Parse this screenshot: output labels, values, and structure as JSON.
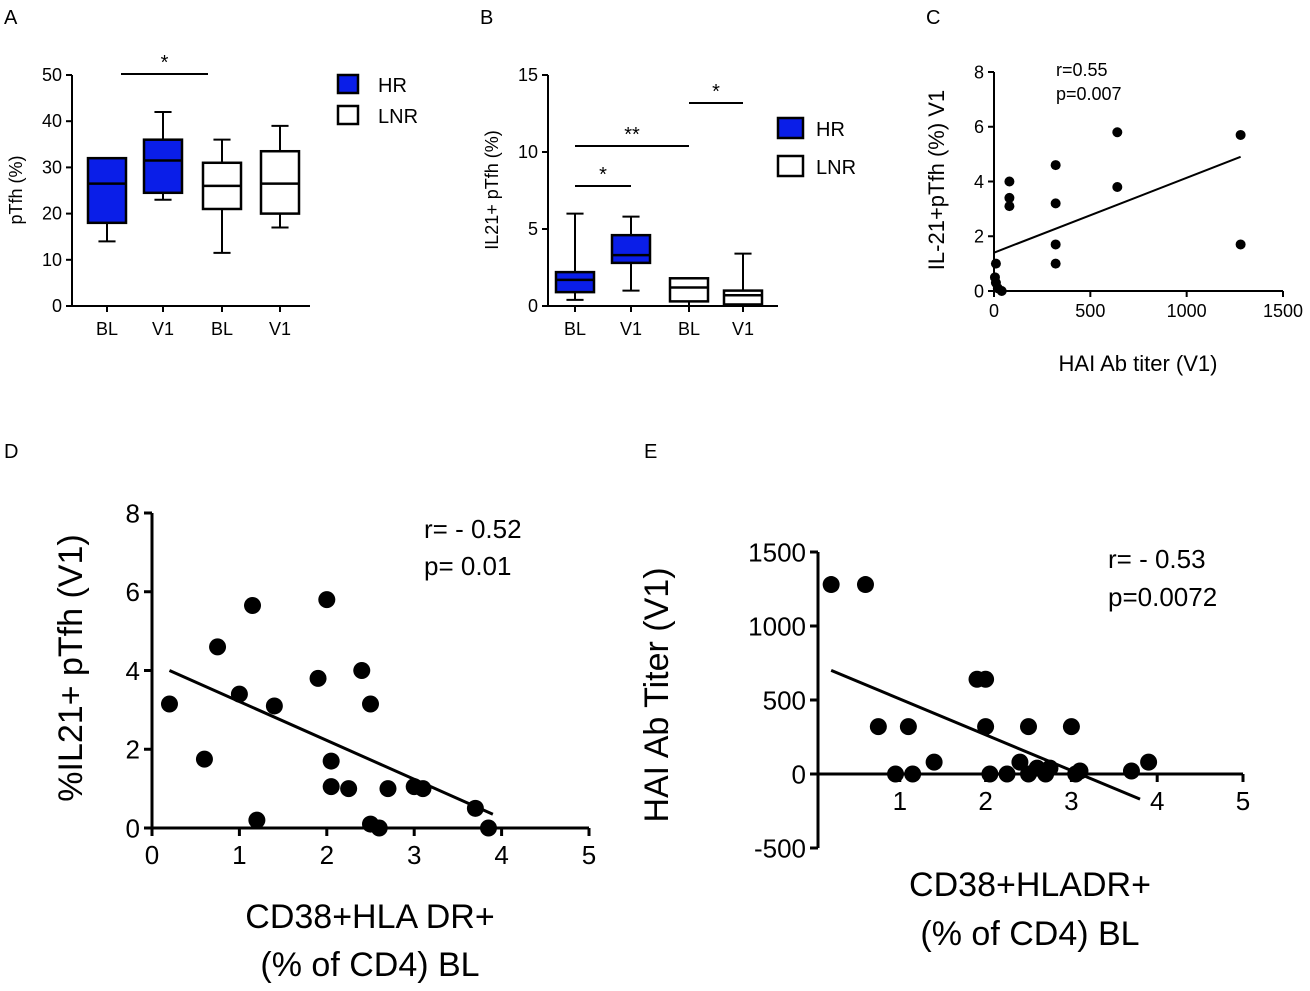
{
  "colors": {
    "hr_fill": "#0a1ee8",
    "lnr_fill": "#ffffff",
    "ink": "#000000"
  },
  "panel_letters": {
    "A": "A",
    "B": "B",
    "C": "C",
    "D": "D",
    "E": "E"
  },
  "chart_data": [
    {
      "id": "A",
      "type": "box",
      "title": "",
      "xlabel": "",
      "ylabel": "pTfh (%)",
      "ylim": [
        0,
        50
      ],
      "yticks": [
        0,
        10,
        20,
        30,
        40,
        50
      ],
      "categories": [
        "BL",
        "V1",
        "BL",
        "V1"
      ],
      "boxes": [
        {
          "group": "HR",
          "min": 14,
          "q1": 18,
          "median": 26.5,
          "q3": 32,
          "max": 32
        },
        {
          "group": "HR",
          "min": 23,
          "q1": 24.5,
          "median": 31.5,
          "q3": 36,
          "max": 42
        },
        {
          "group": "LNR",
          "min": 11.5,
          "q1": 21,
          "median": 26,
          "q3": 31,
          "max": 36
        },
        {
          "group": "LNR",
          "min": 17,
          "q1": 20,
          "median": 26.5,
          "q3": 33.5,
          "max": 39
        }
      ],
      "significance": [
        {
          "from": 0,
          "to": 2,
          "label": "*"
        }
      ],
      "legend": [
        {
          "name": "HR",
          "key": "hr"
        },
        {
          "name": "LNR",
          "key": "lnr"
        }
      ]
    },
    {
      "id": "B",
      "type": "box",
      "title": "",
      "xlabel": "",
      "ylabel": "IL21+ pTfh (%)",
      "ylim": [
        0,
        15
      ],
      "yticks": [
        0,
        5,
        10,
        15
      ],
      "categories": [
        "BL",
        "V1",
        "BL",
        "V1"
      ],
      "boxes": [
        {
          "group": "HR",
          "min": 0.4,
          "q1": 0.9,
          "median": 1.7,
          "q3": 2.2,
          "max": 6
        },
        {
          "group": "HR",
          "min": 1,
          "q1": 2.8,
          "median": 3.3,
          "q3": 4.6,
          "max": 5.8
        },
        {
          "group": "LNR",
          "min": 0,
          "q1": 0.3,
          "median": 1.2,
          "q3": 1.8,
          "max": 1.8
        },
        {
          "group": "LNR",
          "min": 0,
          "q1": 0.1,
          "median": 0.7,
          "q3": 1,
          "max": 3.4
        }
      ],
      "significance": [
        {
          "from": 0,
          "to": 1,
          "label": "*"
        },
        {
          "from": 0,
          "to": 2,
          "label": "**"
        },
        {
          "from": 2,
          "to": 3,
          "label": "*"
        }
      ],
      "legend": [
        {
          "name": "HR",
          "key": "hr"
        },
        {
          "name": "LNR",
          "key": "lnr"
        }
      ]
    },
    {
      "id": "C",
      "type": "scatter",
      "title": "",
      "xlabel": "HAI Ab titer (V1)",
      "ylabel": "IL-21+pTfh (%) V1",
      "xlim": [
        0,
        1500
      ],
      "ylim": [
        0,
        8
      ],
      "xticks": [
        0,
        500,
        1000,
        1500
      ],
      "yticks": [
        0,
        2,
        4,
        6,
        8
      ],
      "points": [
        {
          "x": 5,
          "y": 0.5
        },
        {
          "x": 10,
          "y": 0.3
        },
        {
          "x": 20,
          "y": 0.1
        },
        {
          "x": 10,
          "y": 1.0
        },
        {
          "x": 40,
          "y": 0.0
        },
        {
          "x": 80,
          "y": 4.0
        },
        {
          "x": 80,
          "y": 3.4
        },
        {
          "x": 80,
          "y": 3.1
        },
        {
          "x": 320,
          "y": 4.6
        },
        {
          "x": 320,
          "y": 3.2
        },
        {
          "x": 320,
          "y": 1.7
        },
        {
          "x": 320,
          "y": 1.0
        },
        {
          "x": 640,
          "y": 5.8
        },
        {
          "x": 640,
          "y": 3.8
        },
        {
          "x": 1280,
          "y": 5.7
        },
        {
          "x": 1280,
          "y": 1.7
        }
      ],
      "fit": {
        "x1": 0,
        "y1": 1.4,
        "x2": 1280,
        "y2": 4.9
      },
      "stats": {
        "r": "r=0.55",
        "p": "p=0.007"
      }
    },
    {
      "id": "D",
      "type": "scatter",
      "title": "",
      "xlabel_line1": "CD38+HLA DR+",
      "xlabel_line2": "(% of CD4) BL",
      "ylabel": "%IL21+ pTfh (V1)",
      "xlim": [
        0,
        5
      ],
      "ylim": [
        0,
        8
      ],
      "xticks": [
        0,
        1,
        2,
        3,
        4,
        5
      ],
      "yticks": [
        0,
        2,
        4,
        6,
        8
      ],
      "points": [
        {
          "x": 0.2,
          "y": 3.15
        },
        {
          "x": 0.6,
          "y": 1.75
        },
        {
          "x": 0.75,
          "y": 4.6
        },
        {
          "x": 1.0,
          "y": 3.4
        },
        {
          "x": 1.15,
          "y": 5.65
        },
        {
          "x": 1.2,
          "y": 0.2
        },
        {
          "x": 1.4,
          "y": 3.1
        },
        {
          "x": 1.9,
          "y": 3.8
        },
        {
          "x": 2.0,
          "y": 5.8
        },
        {
          "x": 2.05,
          "y": 1.7
        },
        {
          "x": 2.05,
          "y": 1.05
        },
        {
          "x": 2.25,
          "y": 1.0
        },
        {
          "x": 2.4,
          "y": 4.0
        },
        {
          "x": 2.5,
          "y": 3.15
        },
        {
          "x": 2.5,
          "y": 0.1
        },
        {
          "x": 2.6,
          "y": 0.0
        },
        {
          "x": 2.7,
          "y": 1.0
        },
        {
          "x": 3.0,
          "y": 1.05
        },
        {
          "x": 3.1,
          "y": 1.0
        },
        {
          "x": 3.7,
          "y": 0.5
        },
        {
          "x": 3.85,
          "y": 0.0
        }
      ],
      "fit": {
        "x1": 0.2,
        "y1": 4.0,
        "x2": 3.9,
        "y2": 0.35
      },
      "stats": {
        "r": "r= - 0.52",
        "p": "p= 0.01"
      }
    },
    {
      "id": "E",
      "type": "scatter",
      "title": "",
      "xlabel_line1": "CD38+HLADR+",
      "xlabel_line2": "(% of CD4) BL",
      "ylabel": "HAI Ab Titer (V1)",
      "xlim": [
        0,
        5
      ],
      "ylim": [
        -500,
        1500
      ],
      "xticks": [
        1,
        2,
        3,
        4,
        5
      ],
      "yticks": [
        -500,
        0,
        500,
        1000,
        1500
      ],
      "points": [
        {
          "x": 0.2,
          "y": 1280
        },
        {
          "x": 0.6,
          "y": 1280
        },
        {
          "x": 0.75,
          "y": 320
        },
        {
          "x": 0.95,
          "y": 0
        },
        {
          "x": 1.1,
          "y": 320
        },
        {
          "x": 1.15,
          "y": 0
        },
        {
          "x": 1.4,
          "y": 80
        },
        {
          "x": 1.9,
          "y": 640
        },
        {
          "x": 2.0,
          "y": 640
        },
        {
          "x": 2.0,
          "y": 320
        },
        {
          "x": 2.05,
          "y": 0
        },
        {
          "x": 2.25,
          "y": 0
        },
        {
          "x": 2.4,
          "y": 80
        },
        {
          "x": 2.5,
          "y": 320
        },
        {
          "x": 2.5,
          "y": 0
        },
        {
          "x": 2.6,
          "y": 40
        },
        {
          "x": 2.7,
          "y": 0
        },
        {
          "x": 2.75,
          "y": 40
        },
        {
          "x": 3.0,
          "y": 320
        },
        {
          "x": 3.05,
          "y": 0
        },
        {
          "x": 3.1,
          "y": 20
        },
        {
          "x": 3.7,
          "y": 20
        },
        {
          "x": 3.9,
          "y": 80
        }
      ],
      "fit": {
        "x1": 0.2,
        "y1": 700,
        "x2": 3.8,
        "y2": -170
      },
      "stats": {
        "r": "r= - 0.53",
        "p": "p=0.0072"
      }
    }
  ]
}
